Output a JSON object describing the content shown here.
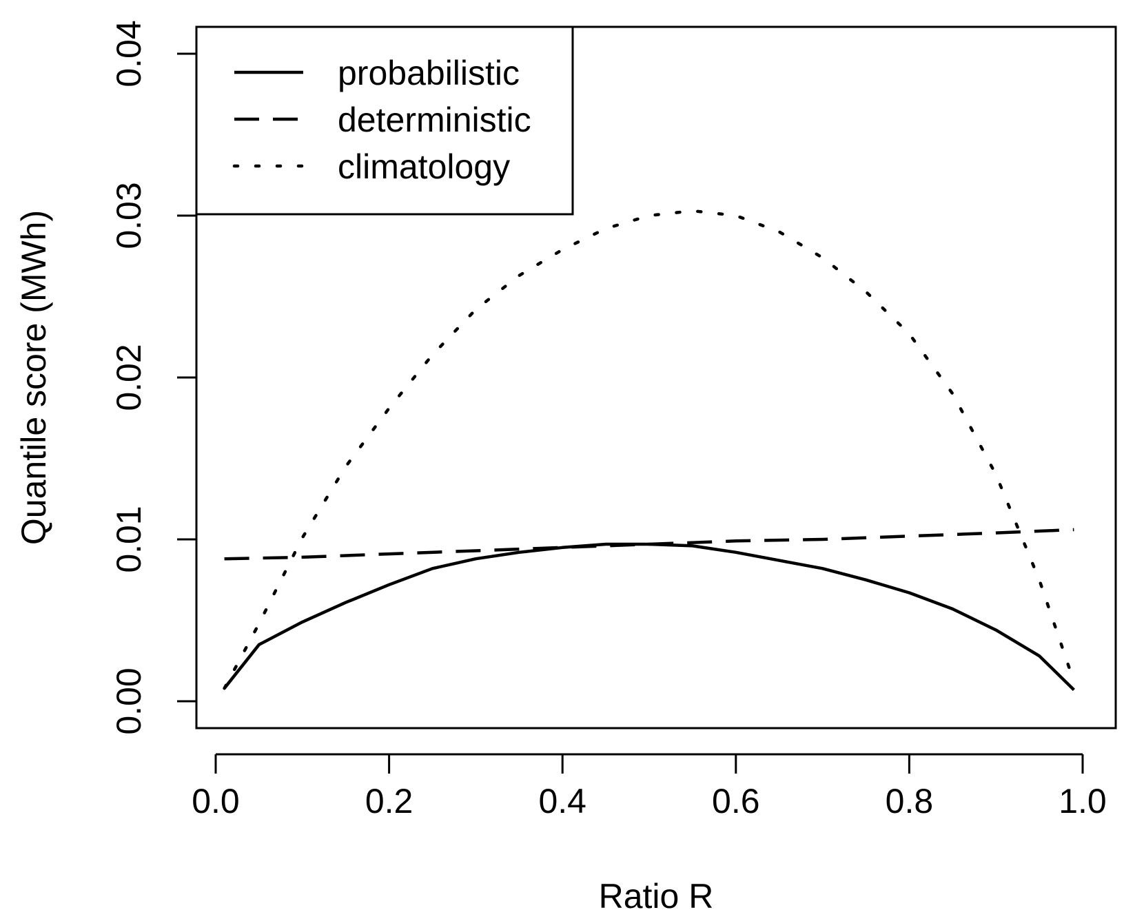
{
  "chart_data": {
    "type": "line",
    "title": "",
    "xlabel": "Ratio R",
    "ylabel": "Quantile score (MWh)",
    "xlim": [
      0.0,
      1.0
    ],
    "ylim": [
      0.0,
      0.04
    ],
    "xticks": [
      0.0,
      0.2,
      0.4,
      0.6,
      0.8,
      1.0
    ],
    "xtick_labels": [
      "0.0",
      "0.2",
      "0.4",
      "0.6",
      "0.8",
      "1.0"
    ],
    "yticks": [
      0.0,
      0.01,
      0.02,
      0.03,
      0.04
    ],
    "ytick_labels": [
      "0.00",
      "0.01",
      "0.02",
      "0.03",
      "0.04"
    ],
    "grid": false,
    "legend_position": "top-left",
    "series": [
      {
        "name": "probabilistic",
        "style": "solid",
        "x": [
          0.01,
          0.05,
          0.1,
          0.15,
          0.2,
          0.25,
          0.3,
          0.35,
          0.4,
          0.45,
          0.5,
          0.55,
          0.6,
          0.65,
          0.7,
          0.75,
          0.8,
          0.85,
          0.9,
          0.95,
          0.99
        ],
        "y": [
          0.0008,
          0.0035,
          0.0049,
          0.0061,
          0.0072,
          0.0082,
          0.0088,
          0.0092,
          0.0095,
          0.0097,
          0.0097,
          0.0096,
          0.0092,
          0.0087,
          0.0082,
          0.0075,
          0.0067,
          0.0057,
          0.0044,
          0.0028,
          0.0007
        ]
      },
      {
        "name": "deterministic",
        "style": "dashed",
        "x": [
          0.01,
          0.1,
          0.2,
          0.3,
          0.4,
          0.5,
          0.6,
          0.7,
          0.8,
          0.9,
          0.99
        ],
        "y": [
          0.0088,
          0.0089,
          0.0091,
          0.0093,
          0.0095,
          0.0097,
          0.0099,
          0.01,
          0.0102,
          0.0104,
          0.0106
        ]
      },
      {
        "name": "climatology",
        "style": "dotted",
        "x": [
          0.01,
          0.05,
          0.1,
          0.15,
          0.2,
          0.25,
          0.3,
          0.35,
          0.4,
          0.45,
          0.5,
          0.55,
          0.6,
          0.65,
          0.7,
          0.75,
          0.8,
          0.85,
          0.9,
          0.95,
          0.99
        ],
        "y": [
          0.0008,
          0.0048,
          0.0101,
          0.0145,
          0.0181,
          0.0214,
          0.0242,
          0.0263,
          0.0279,
          0.0292,
          0.03,
          0.0303,
          0.03,
          0.029,
          0.0274,
          0.0253,
          0.0227,
          0.019,
          0.014,
          0.0075,
          0.0012
        ]
      }
    ]
  }
}
